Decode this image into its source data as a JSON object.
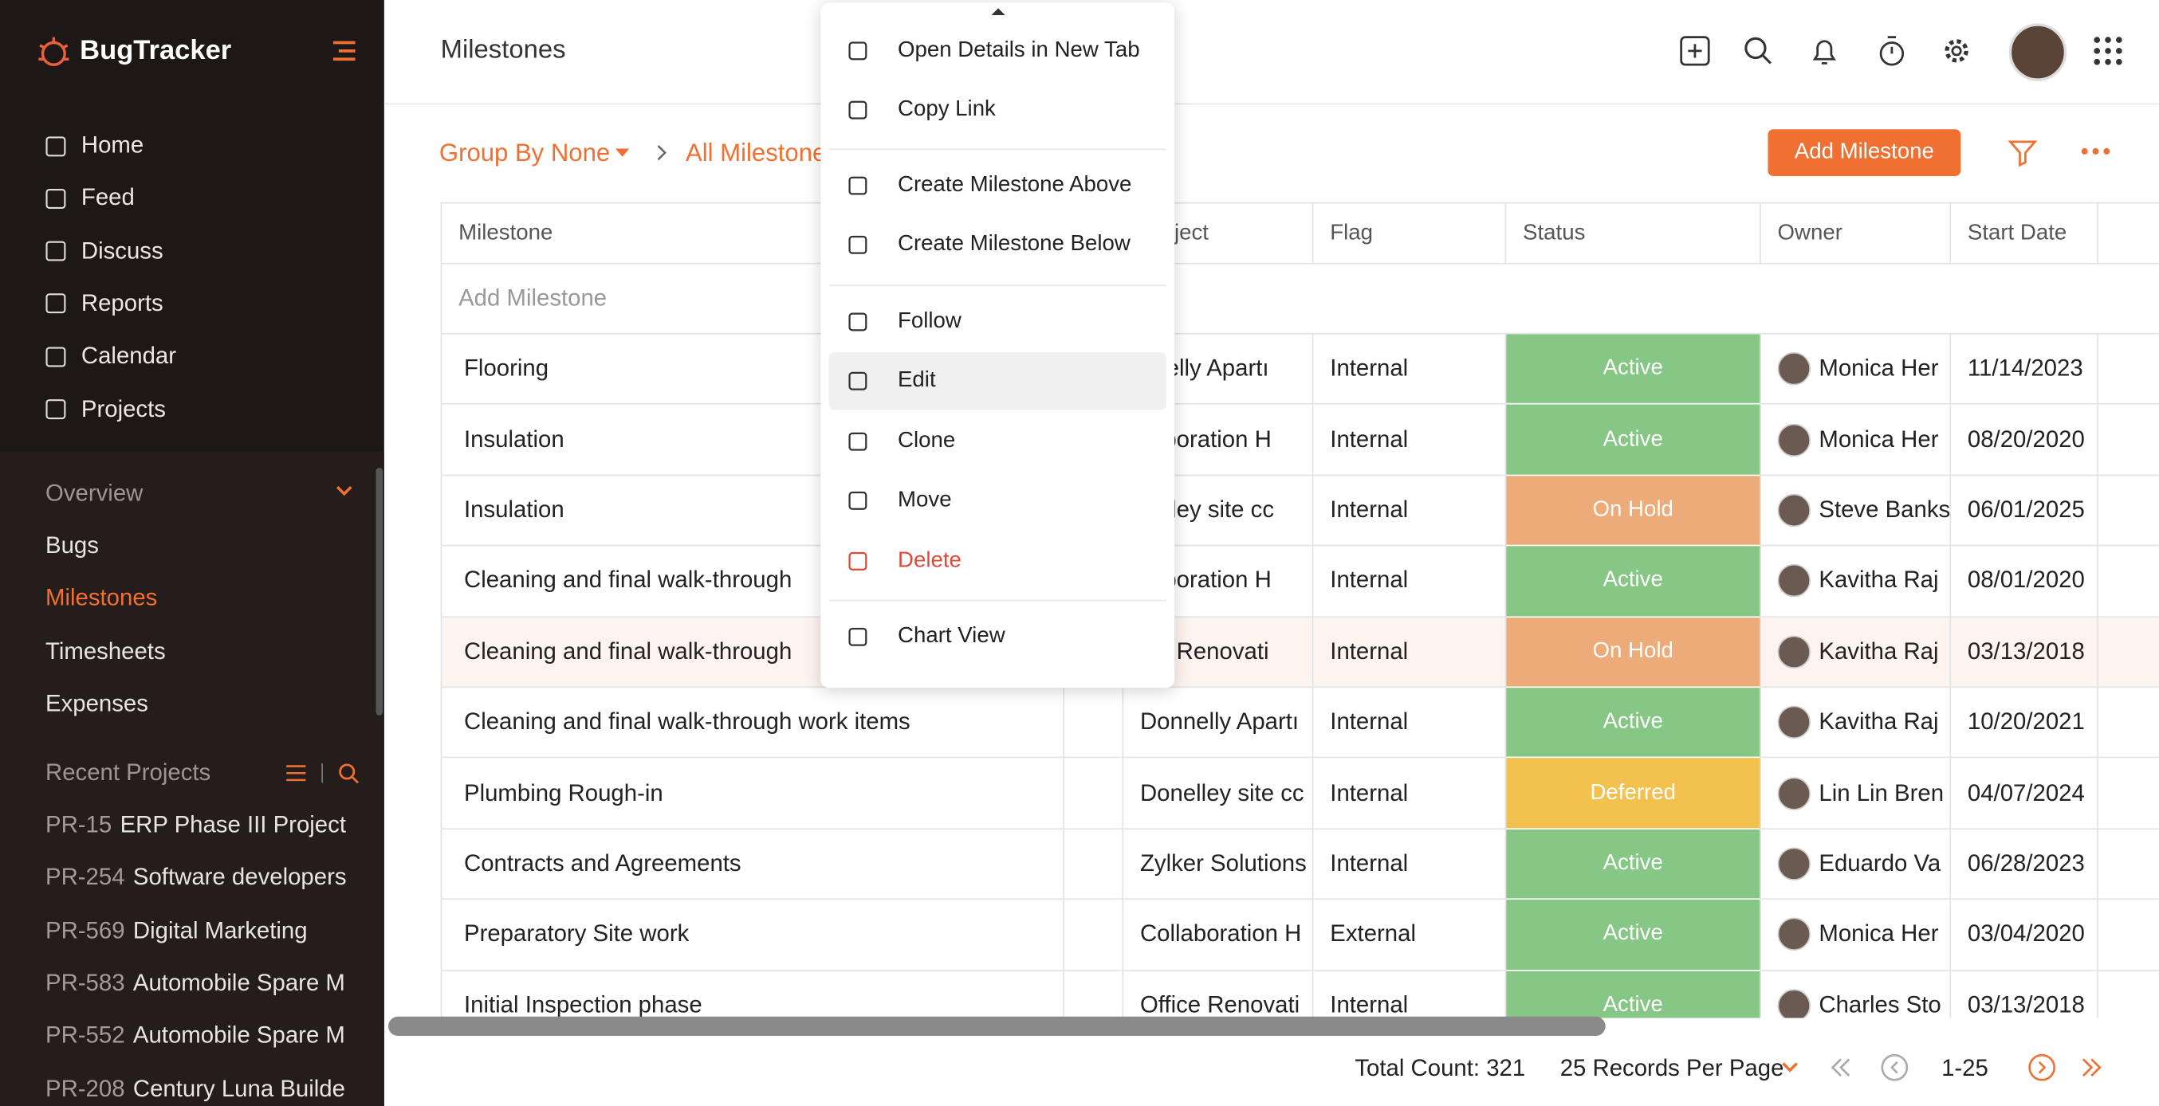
{
  "sidebar": {
    "brand": "BugTracker",
    "nav": [
      "Home",
      "Feed",
      "Discuss",
      "Reports",
      "Calendar",
      "Projects"
    ],
    "section": "Overview",
    "items": [
      "Bugs",
      "Milestones",
      "Timesheets",
      "Expenses"
    ],
    "recent_title": "Recent Projects",
    "recent": [
      {
        "id": "PR-15",
        "name": "ERP Phase III Project"
      },
      {
        "id": "PR-254",
        "name": "Software developers"
      },
      {
        "id": "PR-569",
        "name": "Digital Marketing"
      },
      {
        "id": "PR-583",
        "name": "Automobile Spare M"
      },
      {
        "id": "PR-552",
        "name": "Automobile Spare M"
      },
      {
        "id": "PR-208",
        "name": "Century Luna Builde"
      }
    ]
  },
  "header": {
    "title": "Milestones"
  },
  "toolbar": {
    "group_by": "Group By None",
    "view": "All Milestone",
    "add_button": "Add Milestone"
  },
  "table": {
    "columns": [
      "Milestone",
      "Project",
      "Flag",
      "Status",
      "Owner",
      "Start Date"
    ],
    "add_row": "Add Milestone",
    "rows": [
      [
        "Flooring",
        "nnelly Apartı",
        "Internal",
        "Active",
        "Monica Her",
        "11/14/2023"
      ],
      [
        "Insulation",
        "llaboration H",
        "Internal",
        "Active",
        "Monica Her",
        "08/20/2020"
      ],
      [
        "Insulation",
        "nelley site cc",
        "Internal",
        "On Hold",
        "Steve Banks",
        "06/01/2025"
      ],
      [
        "Cleaning and final walk-through",
        "llaboration H",
        "Internal",
        "Active",
        "Kavitha Raj",
        "08/01/2020"
      ],
      [
        "Cleaning and final walk-through",
        "ice Renovati",
        "Internal",
        "On Hold",
        "Kavitha Raj",
        "03/13/2018"
      ],
      [
        "Cleaning and final walk-through work items",
        "Donnelly Apartı",
        "Internal",
        "Active",
        "Kavitha Raj",
        "10/20/2021"
      ],
      [
        "Plumbing Rough-in",
        "Donelley site cc",
        "Internal",
        "Deferred",
        "Lin Lin Bren",
        "04/07/2024"
      ],
      [
        "Contracts and Agreements",
        "Zylker Solutions",
        "Internal",
        "Active",
        "Eduardo Va",
        "06/28/2023"
      ],
      [
        "Preparatory Site work",
        "Collaboration H",
        "External",
        "Active",
        "Monica Her",
        "03/04/2020"
      ],
      [
        "Initial Inspection phase",
        "Office Renovati",
        "Internal",
        "Active",
        "Charles Sto",
        "03/13/2018"
      ]
    ]
  },
  "menu": {
    "items": [
      "Open Details in New Tab",
      "Copy Link",
      "Create Milestone Above",
      "Create Milestone Below",
      "Follow",
      "Edit",
      "Clone",
      "Move",
      "Delete",
      "Chart View"
    ]
  },
  "footer": {
    "total": "Total Count: 321",
    "per_page": "25 Records Per Page",
    "range": "1-25"
  }
}
